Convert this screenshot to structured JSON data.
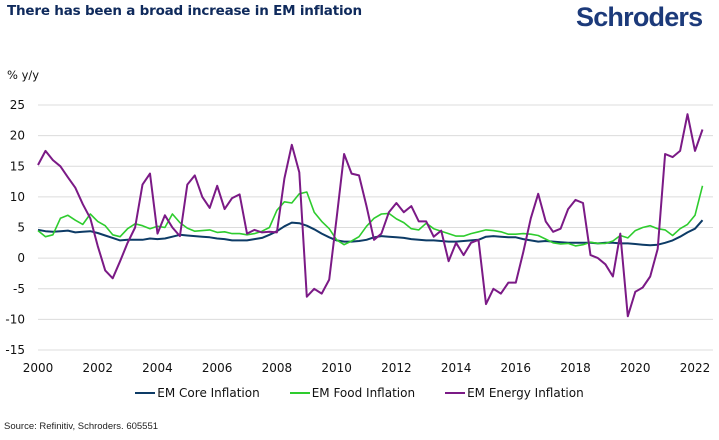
{
  "header": {
    "title": "There has been a broad increase in EM inflation",
    "logo": "Schroders",
    "brand_color": "#1c3a7a"
  },
  "footer": {
    "source": "Source: Refinitiv, Schroders. 605551"
  },
  "chart_data": {
    "type": "line",
    "title": "There has been a broad increase in EM inflation",
    "ylabel": "% y/y",
    "xlabel": "",
    "ylim": [
      -15,
      25
    ],
    "xlim": [
      2000,
      2022.5
    ],
    "yticks": [
      25,
      20,
      15,
      10,
      5,
      0,
      -5,
      -10,
      -15
    ],
    "xticks": [
      2000,
      2002,
      2004,
      2006,
      2008,
      2010,
      2012,
      2014,
      2016,
      2018,
      2020,
      2022
    ],
    "grid": "horizontal",
    "legend": "bottom",
    "x": [
      2000.0,
      2000.25,
      2000.5,
      2000.75,
      2001.0,
      2001.25,
      2001.5,
      2001.75,
      2002.0,
      2002.25,
      2002.5,
      2002.75,
      2003.0,
      2003.25,
      2003.5,
      2003.75,
      2004.0,
      2004.25,
      2004.5,
      2004.75,
      2005.0,
      2005.25,
      2005.5,
      2005.75,
      2006.0,
      2006.25,
      2006.5,
      2006.75,
      2007.0,
      2007.25,
      2007.5,
      2007.75,
      2008.0,
      2008.25,
      2008.5,
      2008.75,
      2009.0,
      2009.25,
      2009.5,
      2009.75,
      2010.0,
      2010.25,
      2010.5,
      2010.75,
      2011.0,
      2011.25,
      2011.5,
      2011.75,
      2012.0,
      2012.25,
      2012.5,
      2012.75,
      2013.0,
      2013.25,
      2013.5,
      2013.75,
      2014.0,
      2014.25,
      2014.5,
      2014.75,
      2015.0,
      2015.25,
      2015.5,
      2015.75,
      2016.0,
      2016.25,
      2016.5,
      2016.75,
      2017.0,
      2017.25,
      2017.5,
      2017.75,
      2018.0,
      2018.25,
      2018.5,
      2018.75,
      2019.0,
      2019.25,
      2019.5,
      2019.75,
      2020.0,
      2020.25,
      2020.5,
      2020.75,
      2021.0,
      2021.25,
      2021.5,
      2021.75,
      2022.0,
      2022.25
    ],
    "series": [
      {
        "name": "EM Core Inflation",
        "color": "#0d3b66",
        "values": [
          4.6,
          4.4,
          4.3,
          4.4,
          4.5,
          4.2,
          4.3,
          4.4,
          4.1,
          3.7,
          3.3,
          2.9,
          3.0,
          3.0,
          3.0,
          3.2,
          3.1,
          3.2,
          3.5,
          3.8,
          3.7,
          3.6,
          3.5,
          3.4,
          3.2,
          3.1,
          2.9,
          2.9,
          2.9,
          3.1,
          3.3,
          3.8,
          4.4,
          5.2,
          5.8,
          5.7,
          5.3,
          4.7,
          4.0,
          3.4,
          2.9,
          2.7,
          2.7,
          2.8,
          3.0,
          3.4,
          3.6,
          3.5,
          3.4,
          3.3,
          3.1,
          3.0,
          2.9,
          2.9,
          2.8,
          2.7,
          2.7,
          2.8,
          2.9,
          3.0,
          3.5,
          3.6,
          3.5,
          3.4,
          3.4,
          3.1,
          2.9,
          2.7,
          2.8,
          2.7,
          2.6,
          2.5,
          2.5,
          2.5,
          2.5,
          2.4,
          2.5,
          2.5,
          2.4,
          2.4,
          2.3,
          2.2,
          2.1,
          2.2,
          2.5,
          2.9,
          3.5,
          4.2,
          4.8,
          6.2
        ]
      },
      {
        "name": "EM Food Inflation",
        "color": "#2ecc2e",
        "values": [
          4.5,
          3.5,
          3.8,
          6.5,
          7.0,
          6.2,
          5.5,
          7.2,
          6.0,
          5.3,
          3.8,
          3.5,
          4.8,
          5.6,
          5.3,
          4.8,
          5.2,
          5.0,
          7.2,
          5.8,
          4.9,
          4.4,
          4.5,
          4.6,
          4.2,
          4.3,
          4.0,
          4.0,
          3.8,
          4.0,
          4.4,
          5.0,
          7.8,
          9.2,
          9.0,
          10.5,
          10.8,
          7.5,
          6.0,
          4.8,
          3.0,
          2.2,
          2.8,
          3.5,
          5.2,
          6.5,
          7.2,
          7.3,
          6.4,
          5.8,
          4.8,
          4.6,
          5.7,
          4.8,
          4.4,
          4.0,
          3.6,
          3.6,
          4.0,
          4.3,
          4.6,
          4.5,
          4.3,
          3.9,
          3.9,
          4.0,
          3.9,
          3.7,
          3.1,
          2.5,
          2.3,
          2.4,
          2.0,
          2.2,
          2.6,
          2.4,
          2.4,
          2.8,
          3.7,
          3.3,
          4.5,
          5.0,
          5.3,
          4.8,
          4.6,
          3.7,
          4.8,
          5.5,
          7.0,
          11.8
        ]
      },
      {
        "name": "EM Energy Inflation",
        "color": "#7b1a86",
        "values": [
          15.2,
          17.5,
          16.0,
          15.0,
          13.2,
          11.5,
          8.8,
          6.5,
          2.0,
          -2.0,
          -3.3,
          -0.5,
          2.5,
          5.0,
          12.0,
          13.8,
          4.0,
          7.0,
          5.0,
          3.6,
          12.0,
          13.5,
          10.0,
          8.2,
          11.8,
          8.0,
          9.8,
          10.4,
          4.0,
          4.6,
          4.2,
          4.3,
          4.2,
          13.0,
          18.5,
          14.0,
          -6.3,
          -5.0,
          -5.8,
          -3.5,
          6.5,
          17.0,
          13.8,
          13.5,
          8.5,
          3.0,
          4.0,
          7.5,
          9.0,
          7.5,
          8.5,
          6.0,
          6.0,
          3.5,
          4.5,
          -0.5,
          2.5,
          0.5,
          2.5,
          3.0,
          -7.5,
          -5.0,
          -5.8,
          -4.0,
          -4.0,
          1.0,
          6.5,
          10.5,
          6.0,
          4.3,
          4.8,
          8.0,
          9.5,
          9.0,
          0.5,
          0.0,
          -1.0,
          -3.0,
          4.0,
          -9.5,
          -5.5,
          -4.8,
          -3.0,
          1.5,
          17.0,
          16.5,
          17.5,
          23.5,
          17.5,
          21.0
        ]
      }
    ]
  }
}
